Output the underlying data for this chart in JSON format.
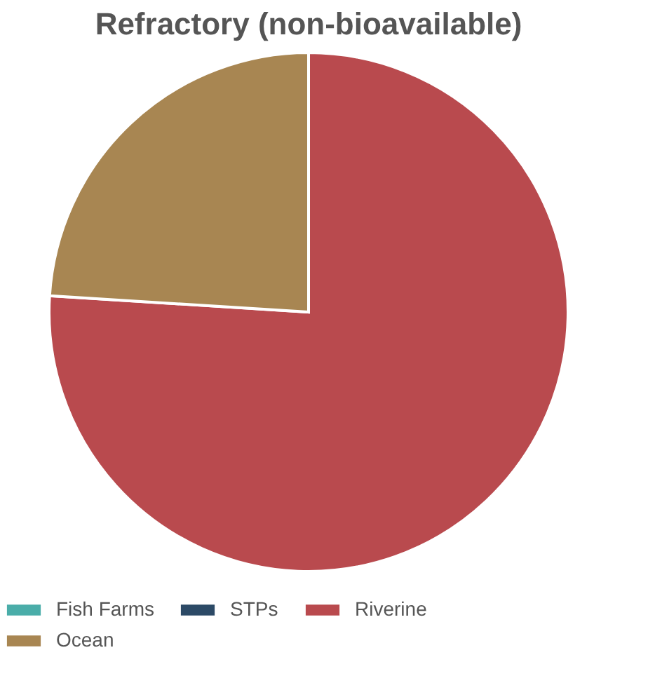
{
  "chart_data": {
    "type": "pie",
    "title": "Refractory (non-bioavailable)",
    "categories": [
      "Fish Farms",
      "STPs",
      "Riverine",
      "Ocean"
    ],
    "values": [
      0,
      0,
      76,
      24
    ],
    "colors": [
      "#4aada9",
      "#2c4a66",
      "#b94a4e",
      "#a88652"
    ],
    "legend": "bottom"
  }
}
